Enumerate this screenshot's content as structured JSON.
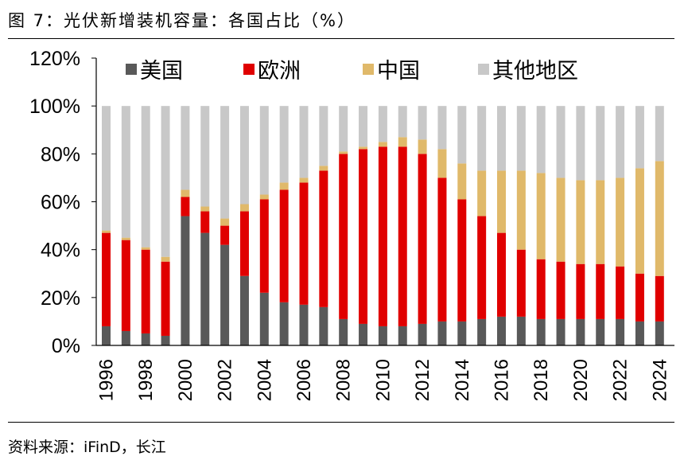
{
  "figure": {
    "title": "图 7：光伏新增装机容量：各国占比（%）",
    "source": "资料来源：iFinD，长江"
  },
  "chart_data": {
    "type": "bar",
    "stacked": true,
    "title": "光伏新增装机容量：各国占比（%）",
    "xlabel": "",
    "ylabel": "",
    "ylim": [
      0,
      120
    ],
    "yticks": [
      "0%",
      "20%",
      "40%",
      "60%",
      "80%",
      "100%",
      "120%"
    ],
    "ytick_values": [
      0,
      20,
      40,
      60,
      80,
      100,
      120
    ],
    "categories": [
      "1996",
      "1997",
      "1998",
      "1999",
      "2000",
      "2001",
      "2002",
      "2003",
      "2004",
      "2005",
      "2006",
      "2007",
      "2008",
      "2009",
      "2010",
      "2011",
      "2012",
      "2013",
      "2014",
      "2015",
      "2016",
      "2017",
      "2018",
      "2019",
      "2020",
      "2021",
      "2022",
      "2023",
      "2024"
    ],
    "xtick_labels": [
      "1996",
      "1998",
      "2000",
      "2002",
      "2004",
      "2006",
      "2008",
      "2010",
      "2012",
      "2014",
      "2016",
      "2018",
      "2020",
      "2022",
      "2024"
    ],
    "legend_position": "top",
    "series": [
      {
        "name": "美国",
        "color": "#595959",
        "values": [
          8,
          6,
          5,
          4,
          54,
          47,
          42,
          29,
          22,
          18,
          17,
          16,
          11,
          9,
          8,
          8,
          9,
          10,
          10,
          11,
          12,
          12,
          11,
          11,
          11,
          11,
          11,
          10,
          10
        ]
      },
      {
        "name": "欧洲",
        "color": "#e00000",
        "values": [
          39,
          38,
          35,
          31,
          8,
          9,
          8,
          27,
          39,
          47,
          51,
          57,
          69,
          73,
          75,
          75,
          71,
          60,
          51,
          43,
          35,
          28,
          25,
          24,
          23,
          23,
          22,
          20,
          19
        ]
      },
      {
        "name": "中国",
        "color": "#e0b96a",
        "values": [
          1,
          1,
          1,
          2,
          3,
          2,
          3,
          3,
          2,
          3,
          2,
          2,
          1,
          1,
          2,
          4,
          6,
          12,
          15,
          19,
          26,
          33,
          36,
          35,
          35,
          35,
          37,
          44,
          48
        ]
      },
      {
        "name": "其他地区",
        "color": "#c8c8c8",
        "values": [
          52,
          55,
          59,
          63,
          35,
          42,
          47,
          41,
          37,
          32,
          30,
          25,
          19,
          17,
          15,
          13,
          14,
          18,
          24,
          27,
          27,
          27,
          28,
          30,
          31,
          31,
          30,
          26,
          23
        ]
      }
    ]
  }
}
